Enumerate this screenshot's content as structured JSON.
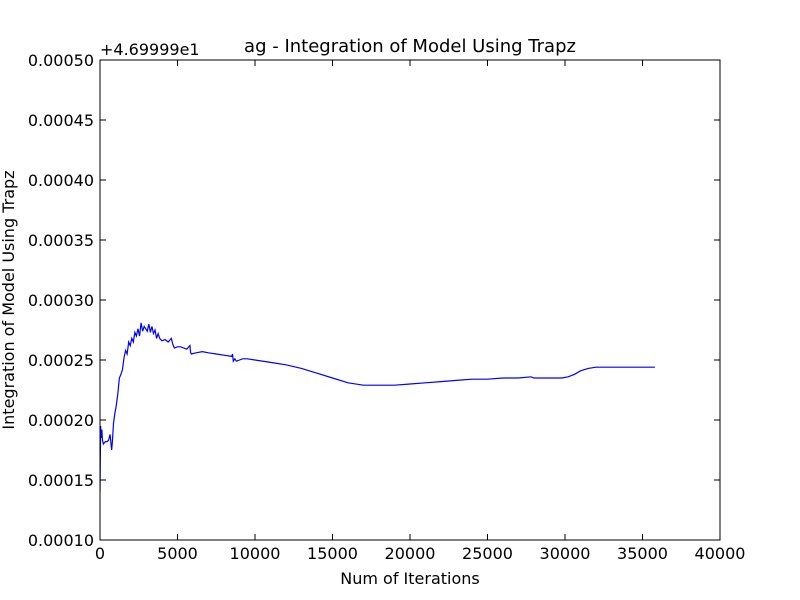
{
  "chart_data": {
    "type": "line",
    "title": "ag - Integration of Model Using Trapz",
    "xlabel": "Num of Iterations",
    "ylabel": "Integration of Model Using Trapz",
    "offset_label": "+4.69999e1",
    "xlim": [
      0,
      40000
    ],
    "ylim": [
      0.0001,
      0.0005
    ],
    "xticks": [
      0,
      5000,
      10000,
      15000,
      20000,
      25000,
      30000,
      35000,
      40000
    ],
    "yticks": [
      "0.00010",
      "0.00015",
      "0.00020",
      "0.00025",
      "0.00030",
      "0.00035",
      "0.00040",
      "0.00045",
      "0.00050"
    ],
    "grid": false,
    "line_color": "#0000ff",
    "series": [
      {
        "x": [
          0,
          40,
          80,
          120,
          160,
          220,
          280,
          350,
          450,
          550,
          650,
          750,
          800,
          870,
          950,
          1050,
          1150,
          1250,
          1350,
          1450,
          1550,
          1650,
          1750,
          1850,
          1950,
          2050,
          2150,
          2250,
          2350,
          2450,
          2550,
          2650,
          2750,
          2850,
          2950,
          3050,
          3150,
          3250,
          3350,
          3450,
          3550,
          3650,
          3750,
          3850,
          4000,
          4200,
          4400,
          4600,
          4700,
          4800,
          5000,
          5200,
          5400,
          5600,
          5800,
          5850,
          5900,
          6200,
          6600,
          7000,
          7500,
          8000,
          8500,
          8550,
          8600,
          8700,
          8800,
          9000,
          9200,
          9500,
          10000,
          11000,
          12000,
          13000,
          14000,
          15000,
          16000,
          17000,
          18000,
          19000,
          20000,
          21000,
          22000,
          23000,
          24000,
          25000,
          26000,
          27000,
          27800,
          28000,
          29000,
          29800,
          30200,
          30600,
          31000,
          31500,
          32000,
          33000,
          34000,
          35000,
          35800
        ],
        "y": [
          0.00014,
          0.000195,
          0.000185,
          0.000192,
          0.000183,
          0.00018,
          0.000181,
          0.000182,
          0.000182,
          0.000183,
          0.000188,
          0.000175,
          0.000182,
          0.000197,
          0.000205,
          0.000212,
          0.000222,
          0.000235,
          0.000238,
          0.000242,
          0.000252,
          0.000258,
          0.000255,
          0.000265,
          0.000262,
          0.000268,
          0.000265,
          0.000273,
          0.00027,
          0.000276,
          0.00027,
          0.000281,
          0.000274,
          0.000278,
          0.000276,
          0.000274,
          0.00028,
          0.000273,
          0.000278,
          0.000272,
          0.000275,
          0.000268,
          0.000272,
          0.000268,
          0.000266,
          0.000267,
          0.000265,
          0.000268,
          0.000263,
          0.00026,
          0.000261,
          0.000261,
          0.00026,
          0.000259,
          0.000262,
          0.000256,
          0.000255,
          0.000256,
          0.000257,
          0.000256,
          0.000255,
          0.000254,
          0.000253,
          0.000255,
          0.000249,
          0.000251,
          0.000249,
          0.00025,
          0.000251,
          0.000251,
          0.00025,
          0.000248,
          0.000246,
          0.000243,
          0.000239,
          0.000235,
          0.000231,
          0.000229,
          0.000229,
          0.000229,
          0.00023,
          0.000231,
          0.000232,
          0.000233,
          0.000234,
          0.000234,
          0.000235,
          0.000235,
          0.000236,
          0.000235,
          0.000235,
          0.000235,
          0.000236,
          0.000238,
          0.000241,
          0.000243,
          0.000244,
          0.000244,
          0.000244,
          0.000244,
          0.000244
        ]
      }
    ]
  }
}
